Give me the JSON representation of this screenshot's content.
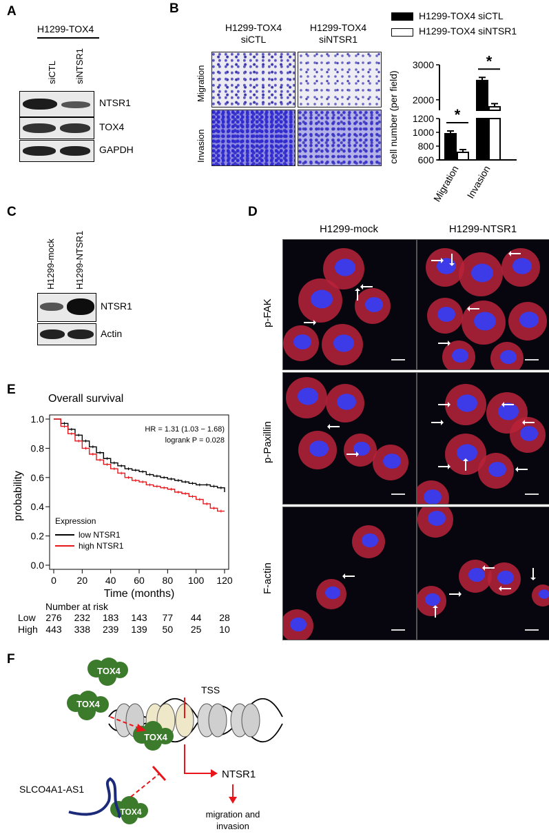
{
  "panel_labels": {
    "A": "A",
    "B": "B",
    "C": "C",
    "D": "D",
    "E": "E",
    "F": "F"
  },
  "panel_a": {
    "cell_line": "H1299-TOX4",
    "lanes": [
      "siCTL",
      "siNTSR1"
    ],
    "blots": [
      "NTSR1",
      "TOX4",
      "GAPDH"
    ]
  },
  "panel_b": {
    "col_headers": [
      {
        "line1": "H1299-TOX4",
        "line2": "siCTL"
      },
      {
        "line1": "H1299-TOX4",
        "line2": "siNTSR1"
      }
    ],
    "row_labels": [
      "Migration",
      "Invasion"
    ],
    "legend": [
      "H1299-TOX4 siCTL",
      "H1299-TOX4 siNTSR1"
    ],
    "significance": "*"
  },
  "chart_data": {
    "type": "bar",
    "categories": [
      "Migration",
      "Invasion"
    ],
    "series": [
      {
        "name": "H1299-TOX4 siCTL",
        "values": [
          980,
          2550
        ],
        "errors": [
          40,
          90
        ],
        "fill": "#000000"
      },
      {
        "name": "H1299-TOX4 siNTSR1",
        "values": [
          710,
          1800
        ],
        "errors": [
          40,
          90
        ],
        "fill": "#ffffff"
      }
    ],
    "ylabel": "cell number (per field)",
    "ylim": [
      600,
      3000
    ],
    "axis_break": [
      1200,
      1700
    ],
    "yticks_lower": [
      600,
      800,
      1000,
      1200
    ],
    "yticks_upper": [
      2000,
      3000
    ],
    "title": "",
    "xlabel": ""
  },
  "panel_c": {
    "lanes": [
      "H1299-mock",
      "H1299-NTSR1"
    ],
    "blots": [
      "NTSR1",
      "Actin"
    ]
  },
  "panel_d": {
    "col_headers": [
      "H1299-mock",
      "H1299-NTSR1"
    ],
    "row_labels": [
      "p-FAK",
      "p-Paxillin",
      "F-actin"
    ]
  },
  "panel_e": {
    "title": "Overall survival",
    "ylabel": "probability",
    "xlabel": "Time (months)",
    "hr_text": "HR = 1.31 (1.03 − 1.68)",
    "logrank_text": "logrank P = 0.028",
    "legend_title": "Expression",
    "legend": [
      {
        "label": "low NTSR1",
        "color": "#000000"
      },
      {
        "label": "high NTSR1",
        "color": "#e8161b"
      }
    ],
    "xticks": [
      0,
      20,
      40,
      60,
      80,
      100,
      120
    ],
    "yticks": [
      "0.0",
      "0.2",
      "0.4",
      "0.6",
      "0.8",
      "1.0"
    ],
    "risk_header": "Number at risk",
    "risk_rows": [
      {
        "label": "Low",
        "values": [
          "276",
          "232",
          "183",
          "143",
          "77",
          "44",
          "28"
        ]
      },
      {
        "label": "High",
        "values": [
          "443",
          "338",
          "239",
          "139",
          "50",
          "25",
          "10"
        ]
      }
    ],
    "km_data": {
      "low": [
        [
          0,
          1.0
        ],
        [
          5,
          0.97
        ],
        [
          10,
          0.93
        ],
        [
          15,
          0.89
        ],
        [
          20,
          0.85
        ],
        [
          25,
          0.81
        ],
        [
          30,
          0.77
        ],
        [
          35,
          0.73
        ],
        [
          40,
          0.7
        ],
        [
          45,
          0.68
        ],
        [
          50,
          0.66
        ],
        [
          55,
          0.65
        ],
        [
          60,
          0.64
        ],
        [
          65,
          0.62
        ],
        [
          70,
          0.61
        ],
        [
          75,
          0.6
        ],
        [
          80,
          0.59
        ],
        [
          85,
          0.58
        ],
        [
          90,
          0.57
        ],
        [
          95,
          0.56
        ],
        [
          100,
          0.55
        ],
        [
          105,
          0.55
        ],
        [
          110,
          0.54
        ],
        [
          115,
          0.53
        ],
        [
          120,
          0.5
        ]
      ],
      "high": [
        [
          0,
          1.0
        ],
        [
          5,
          0.95
        ],
        [
          10,
          0.9
        ],
        [
          15,
          0.85
        ],
        [
          20,
          0.8
        ],
        [
          25,
          0.76
        ],
        [
          30,
          0.72
        ],
        [
          35,
          0.69
        ],
        [
          40,
          0.66
        ],
        [
          45,
          0.63
        ],
        [
          50,
          0.6
        ],
        [
          55,
          0.58
        ],
        [
          60,
          0.57
        ],
        [
          65,
          0.55
        ],
        [
          70,
          0.54
        ],
        [
          75,
          0.53
        ],
        [
          80,
          0.52
        ],
        [
          85,
          0.5
        ],
        [
          90,
          0.49
        ],
        [
          95,
          0.47
        ],
        [
          100,
          0.45
        ],
        [
          105,
          0.42
        ],
        [
          110,
          0.39
        ],
        [
          115,
          0.37
        ],
        [
          120,
          0.37
        ]
      ]
    }
  },
  "panel_f": {
    "tox4_label": "TOX4",
    "tss": "TSS",
    "ntsr1": "NTSR1",
    "lncrna": "SLCO4A1-AS1",
    "outcome_line1": "migration and",
    "outcome_line2": "invasion"
  }
}
